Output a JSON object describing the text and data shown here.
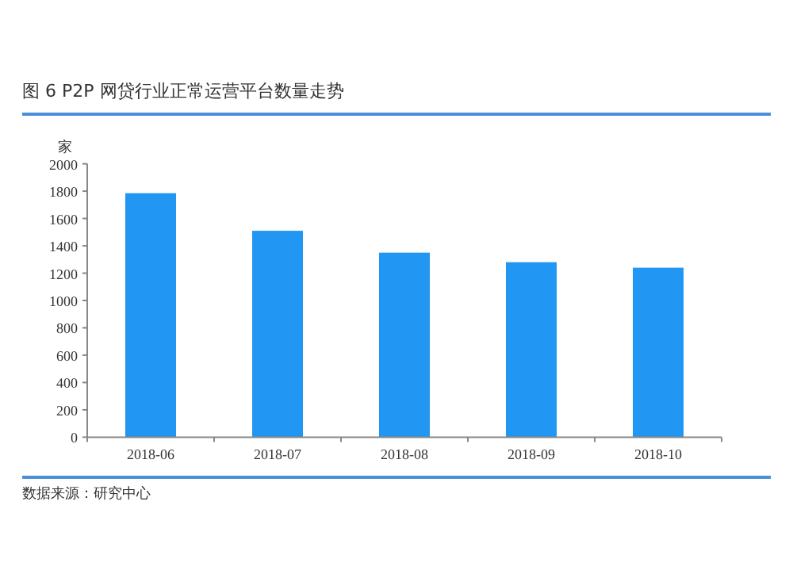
{
  "chart_data": {
    "type": "bar",
    "title": "图 6   P2P 网贷行业正常运营平台数量走势",
    "ylabel": "家",
    "categories": [
      "2018-06",
      "2018-07",
      "2018-08",
      "2018-09",
      "2018-10"
    ],
    "values": [
      1785,
      1510,
      1350,
      1280,
      1240
    ],
    "color": "#2196f3",
    "ylim": [
      0,
      2000
    ],
    "yticks": [
      0,
      200,
      400,
      600,
      800,
      1000,
      1200,
      1400,
      1600,
      1800,
      2000
    ],
    "annotations": [
      "数据来源：研究中心"
    ]
  }
}
